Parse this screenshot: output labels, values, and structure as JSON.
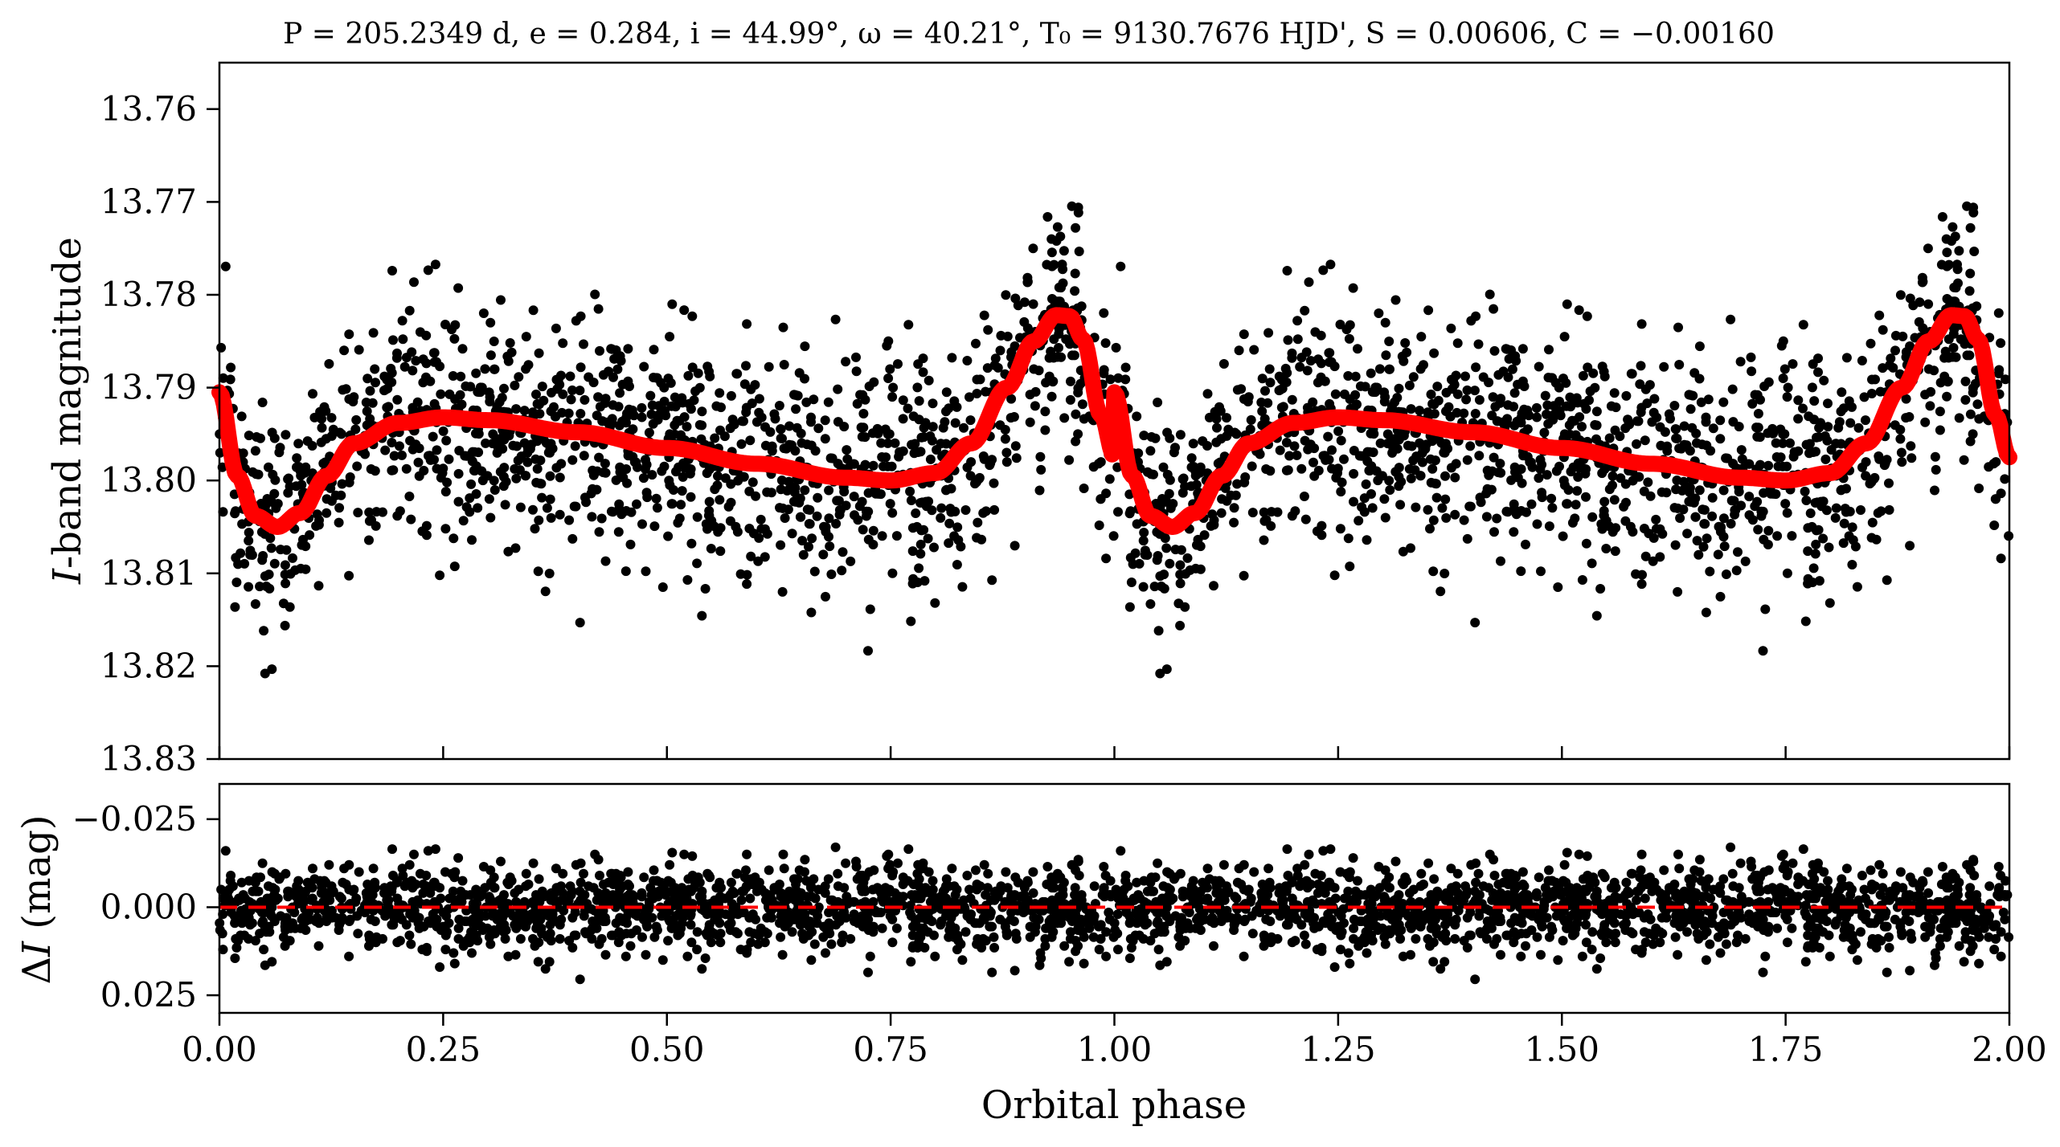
{
  "chart_data": [
    {
      "type": "scatter",
      "panel": "top",
      "title": "P = 205.2349 d, e = 0.284, i = 44.99°, ω = 40.21°, T₀ = 9130.7676 HJD', S = 0.00606, C = −0.00160",
      "xlabel": "",
      "ylabel_italic": "I",
      "ylabel_rest": "-band magnitude",
      "xlim": [
        0.0,
        2.0
      ],
      "ylim": [
        13.83,
        13.755
      ],
      "y_inverted": true,
      "yticks": [
        13.76,
        13.77,
        13.78,
        13.79,
        13.8,
        13.81,
        13.82,
        13.83
      ],
      "ytick_labels": [
        "13.76",
        "13.77",
        "13.78",
        "13.79",
        "13.80",
        "13.81",
        "13.82",
        "13.83"
      ],
      "series": [
        {
          "kind": "points",
          "color": "#000000",
          "mean_level": 13.797,
          "scatter_sd": 0.0062,
          "points_per_cycle": 1400,
          "sample": [
            [
              0.0,
              13.795
            ],
            [
              0.06,
              13.805
            ],
            [
              0.2,
              13.79
            ],
            [
              0.5,
              13.797
            ],
            [
              0.75,
              13.8
            ],
            [
              0.95,
              13.782
            ],
            [
              1.06,
              13.805
            ],
            [
              1.25,
              13.793
            ],
            [
              1.75,
              13.8
            ],
            [
              1.95,
              13.782
            ]
          ]
        },
        {
          "kind": "model",
          "color": "#ff0000",
          "x": [
            0.0,
            0.02,
            0.04,
            0.065,
            0.09,
            0.12,
            0.15,
            0.2,
            0.25,
            0.3,
            0.4,
            0.5,
            0.6,
            0.7,
            0.75,
            0.8,
            0.84,
            0.88,
            0.91,
            0.935,
            0.95,
            0.965,
            0.985,
            1.0
          ],
          "y": [
            13.7905,
            13.7995,
            13.8038,
            13.805,
            13.8035,
            13.7995,
            13.796,
            13.7938,
            13.7932,
            13.7935,
            13.7948,
            13.7965,
            13.7982,
            13.7997,
            13.8,
            13.7992,
            13.796,
            13.79,
            13.785,
            13.7822,
            13.7823,
            13.7848,
            13.793,
            13.7975
          ]
        }
      ]
    },
    {
      "type": "scatter",
      "panel": "bottom",
      "xlabel": "Orbital phase",
      "ylabel_delta": "Δ",
      "ylabel_italic": "I",
      "ylabel_rest": " (mag)",
      "xlim": [
        0.0,
        2.0
      ],
      "ylim": [
        0.03,
        -0.035
      ],
      "y_inverted": true,
      "yticks": [
        -0.025,
        0.0,
        0.025
      ],
      "ytick_labels": [
        "−0.025",
        "0.000",
        "0.025"
      ],
      "xticks": [
        0.0,
        0.25,
        0.5,
        0.75,
        1.0,
        1.25,
        1.5,
        1.75,
        2.0
      ],
      "xtick_labels": [
        "0.00",
        "0.25",
        "0.50",
        "0.75",
        "1.00",
        "1.25",
        "1.50",
        "1.75",
        "2.00"
      ],
      "zero_line": {
        "value": 0.0,
        "color": "#ff0000",
        "style": "dashed"
      },
      "series": [
        {
          "kind": "points",
          "color": "#000000",
          "mean_level": 0.0,
          "scatter_sd": 0.0062,
          "points_per_cycle": 1400
        }
      ]
    }
  ]
}
